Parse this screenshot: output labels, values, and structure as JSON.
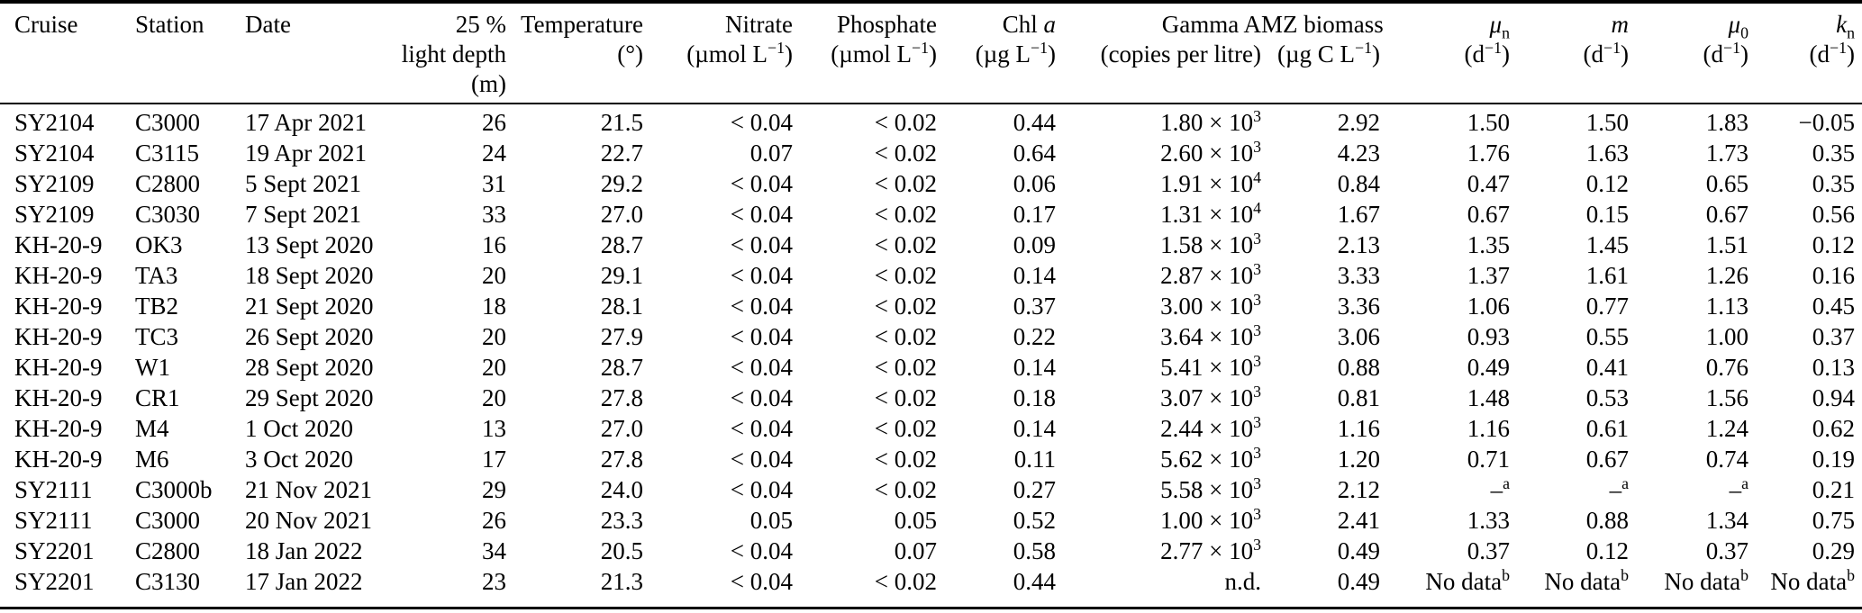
{
  "table": {
    "columns": [
      {
        "id": "cruise",
        "lines": [
          "Cruise"
        ]
      },
      {
        "id": "station",
        "lines": [
          "Station"
        ]
      },
      {
        "id": "date",
        "lines": [
          "Date"
        ]
      },
      {
        "id": "light-depth",
        "lines": [
          "25 %",
          "light depth",
          "(m)"
        ]
      },
      {
        "id": "temperature",
        "lines": [
          "Temperature",
          "(°)"
        ]
      },
      {
        "id": "nitrate",
        "lines": [
          "Nitrate",
          "(µmol L^{−1})"
        ]
      },
      {
        "id": "phosphate",
        "lines": [
          "Phosphate",
          "(µmol L^{−1})"
        ]
      },
      {
        "id": "chl-a",
        "lines": [
          "Chl *a*",
          "(µg L^{−1})"
        ]
      },
      {
        "id": "gamma-a",
        "lines": [
          "Gamma A",
          "(copies per litre)"
        ]
      },
      {
        "id": "mz-biomass",
        "lines": [
          "MZ biomass",
          "(µg C L^{−1})"
        ]
      },
      {
        "id": "mu-n",
        "lines": [
          "*μ*_{n}",
          "(d^{−1})"
        ]
      },
      {
        "id": "m",
        "lines": [
          "*m*",
          "(d^{−1})"
        ]
      },
      {
        "id": "mu-0",
        "lines": [
          "*μ*_{0}",
          "(d^{−1})"
        ]
      },
      {
        "id": "k-n",
        "lines": [
          "*k*_{n}",
          "(d^{−1})"
        ]
      }
    ],
    "rows": [
      [
        "SY2104",
        "C3000",
        "17 Apr 2021",
        "26",
        "21.5",
        "< 0.04",
        "< 0.02",
        "0.44",
        "1.80 × 10^{3}",
        "2.92",
        "1.50",
        "1.50",
        "1.83",
        "−0.05"
      ],
      [
        "SY2104",
        "C3115",
        "19 Apr 2021",
        "24",
        "22.7",
        "0.07",
        "< 0.02",
        "0.64",
        "2.60 × 10^{3}",
        "4.23",
        "1.76",
        "1.63",
        "1.73",
        "0.35"
      ],
      [
        "SY2109",
        "C2800",
        "5 Sept 2021",
        "31",
        "29.2",
        "< 0.04",
        "< 0.02",
        "0.06",
        "1.91 × 10^{4}",
        "0.84",
        "0.47",
        "0.12",
        "0.65",
        "0.35"
      ],
      [
        "SY2109",
        "C3030",
        "7 Sept 2021",
        "33",
        "27.0",
        "< 0.04",
        "< 0.02",
        "0.17",
        "1.31 × 10^{4}",
        "1.67",
        "0.67",
        "0.15",
        "0.67",
        "0.56"
      ],
      [
        "KH-20-9",
        "OK3",
        "13 Sept 2020",
        "16",
        "28.7",
        "< 0.04",
        "< 0.02",
        "0.09",
        "1.58 × 10^{3}",
        "2.13",
        "1.35",
        "1.45",
        "1.51",
        "0.12"
      ],
      [
        "KH-20-9",
        "TA3",
        "18 Sept 2020",
        "20",
        "29.1",
        "< 0.04",
        "< 0.02",
        "0.14",
        "2.87 × 10^{3}",
        "3.33",
        "1.37",
        "1.61",
        "1.26",
        "0.16"
      ],
      [
        "KH-20-9",
        "TB2",
        "21 Sept 2020",
        "18",
        "28.1",
        "< 0.04",
        "< 0.02",
        "0.37",
        "3.00 × 10^{3}",
        "3.36",
        "1.06",
        "0.77",
        "1.13",
        "0.45"
      ],
      [
        "KH-20-9",
        "TC3",
        "26 Sept 2020",
        "20",
        "27.9",
        "< 0.04",
        "< 0.02",
        "0.22",
        "3.64 × 10^{3}",
        "3.06",
        "0.93",
        "0.55",
        "1.00",
        "0.37"
      ],
      [
        "KH-20-9",
        "W1",
        "28 Sept 2020",
        "20",
        "28.7",
        "< 0.04",
        "< 0.02",
        "0.14",
        "5.41 × 10^{3}",
        "0.88",
        "0.49",
        "0.41",
        "0.76",
        "0.13"
      ],
      [
        "KH-20-9",
        "CR1",
        "29 Sept 2020",
        "20",
        "27.8",
        "< 0.04",
        "< 0.02",
        "0.18",
        "3.07 × 10^{3}",
        "0.81",
        "1.48",
        "0.53",
        "1.56",
        "0.94"
      ],
      [
        "KH-20-9",
        "M4",
        "1 Oct 2020",
        "13",
        "27.0",
        "< 0.04",
        "< 0.02",
        "0.14",
        "2.44 × 10^{3}",
        "1.16",
        "1.16",
        "0.61",
        "1.24",
        "0.62"
      ],
      [
        "KH-20-9",
        "M6",
        "3 Oct 2020",
        "17",
        "27.8",
        "< 0.04",
        "< 0.02",
        "0.11",
        "5.62 × 10^{3}",
        "1.20",
        "0.71",
        "0.67",
        "0.74",
        "0.19"
      ],
      [
        "SY2111",
        "C3000b",
        "21 Nov 2021",
        "29",
        "24.0",
        "< 0.04",
        "< 0.02",
        "0.27",
        "5.58 × 10^{3}",
        "2.12",
        "–^{a}",
        "–^{a}",
        "–^{a}",
        "0.21"
      ],
      [
        "SY2111",
        "C3000",
        "20 Nov 2021",
        "26",
        "23.3",
        "0.05",
        "0.05",
        "0.52",
        "1.00 × 10^{3}",
        "2.41",
        "1.33",
        "0.88",
        "1.34",
        "0.75"
      ],
      [
        "SY2201",
        "C2800",
        "18 Jan 2022",
        "34",
        "20.5",
        "< 0.04",
        "0.07",
        "0.58",
        "2.77 × 10^{3}",
        "0.49",
        "0.37",
        "0.12",
        "0.37",
        "0.29"
      ],
      [
        "SY2201",
        "C3130",
        "17 Jan 2022",
        "23",
        "21.3",
        "< 0.04",
        "< 0.02",
        "0.44",
        "n.d.",
        "0.49",
        "No data^{b}",
        "No data^{b}",
        "No data^{b}",
        "No data^{b}"
      ]
    ]
  }
}
